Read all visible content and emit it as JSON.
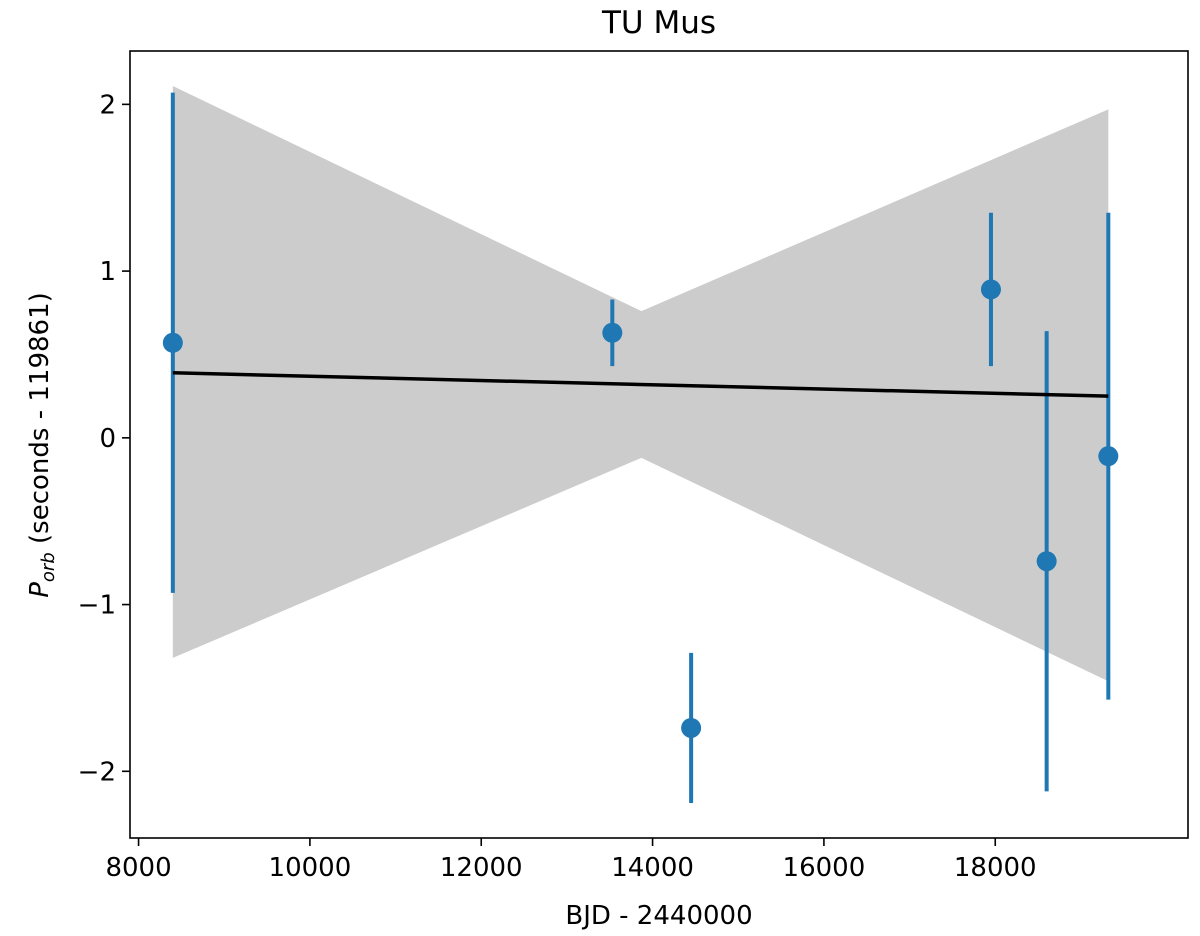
{
  "chart_data": {
    "type": "scatter",
    "title": "TU Mus",
    "xlabel": "BJD - 2440000",
    "ylabel_main": "P",
    "ylabel_sub": "orb",
    "ylabel_rest": " (seconds - 119861)",
    "xlim": [
      7900,
      20250
    ],
    "ylim": [
      -2.4,
      2.32
    ],
    "xticks": [
      8000,
      10000,
      12000,
      14000,
      16000,
      18000
    ],
    "xtick_labels": [
      "8000",
      "10000",
      "12000",
      "14000",
      "16000",
      "18000"
    ],
    "yticks": [
      -2,
      -1,
      0,
      1,
      2
    ],
    "ytick_labels": [
      "−2",
      "−1",
      "0",
      "1",
      "2"
    ],
    "grid": false,
    "series": [
      {
        "kind": "errorbar",
        "color": "#1f77b4",
        "points": [
          {
            "x": 8400,
            "y": 0.57,
            "err": 1.5
          },
          {
            "x": 13530,
            "y": 0.63,
            "err": 0.2
          },
          {
            "x": 14450,
            "y": -1.74,
            "err": 0.45
          },
          {
            "x": 17950,
            "y": 0.89,
            "err": 0.46
          },
          {
            "x": 18600,
            "y": -0.74,
            "err": 1.38
          },
          {
            "x": 19320,
            "y": -0.11,
            "err": 1.46
          }
        ]
      },
      {
        "kind": "fit_line",
        "color": "#000000",
        "x": [
          8400,
          19320
        ],
        "y": [
          0.39,
          0.25
        ]
      },
      {
        "kind": "confidence_band",
        "color": "#cccccc",
        "x": [
          8400,
          13870,
          19320
        ],
        "upper": [
          2.11,
          0.76,
          1.97
        ],
        "lower": [
          -1.32,
          -0.12,
          -1.46
        ]
      }
    ]
  }
}
